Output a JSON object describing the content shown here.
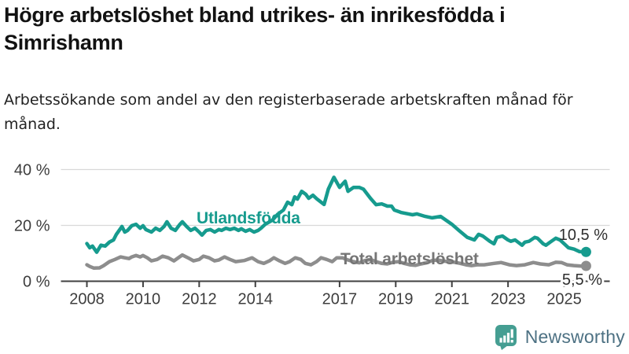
{
  "header": {
    "title": "Högre arbetslöshet bland utrikes- än inrikesfödda i Simrishamn",
    "subtitle": "Arbetssökande som andel av den registerbaserade arbetskraften månad för månad."
  },
  "colors": {
    "teal": "#169B8E",
    "gray_line": "#8D8D8D",
    "gray_label": "#757575",
    "axis": "#404040",
    "grid": "#D8D8D8",
    "annotation": "#2E2E2E",
    "brand_text": "#4D7183",
    "brand_icon": "#459E92"
  },
  "footer": {
    "brand": "Newsworthy",
    "logo_icon": "bar-chart-speech-bubble-icon"
  },
  "chart_data": {
    "type": "line",
    "title": "Högre arbetslöshet bland utrikes- än inrikesfödda i Simrishamn",
    "subtitle": "Arbetssökande som andel av den registerbaserade arbetskraften månad för månad.",
    "xlabel": "",
    "ylabel": "",
    "unit": "%",
    "grid": true,
    "legend_position": "inline-labels",
    "ylim": [
      0,
      40
    ],
    "xlim": [
      2008,
      2025.9
    ],
    "yticks": [
      {
        "value": 0,
        "label": "0 %"
      },
      {
        "value": 20,
        "label": "20 %"
      },
      {
        "value": 40,
        "label": "40 %"
      }
    ],
    "xticks": [
      {
        "value": 2008,
        "label": "2008"
      },
      {
        "value": 2010,
        "label": "2010"
      },
      {
        "value": 2012,
        "label": "2012"
      },
      {
        "value": 2014,
        "label": "2014"
      },
      {
        "value": 2017,
        "label": "2017"
      },
      {
        "value": 2019,
        "label": "2019"
      },
      {
        "value": 2021,
        "label": "2021"
      },
      {
        "value": 2023,
        "label": "2023"
      },
      {
        "value": 2025,
        "label": "2025"
      }
    ],
    "series": [
      {
        "name": "Utlandsfödda",
        "slug": "utlandsfodda",
        "color": "#169B8E",
        "end_label": "10,5 %",
        "end_value": 10.5,
        "points": [
          [
            2008.0,
            13.5
          ],
          [
            2008.1,
            12.0
          ],
          [
            2008.2,
            12.6
          ],
          [
            2008.35,
            10.4
          ],
          [
            2008.5,
            12.9
          ],
          [
            2008.65,
            12.6
          ],
          [
            2008.8,
            14.0
          ],
          [
            2008.95,
            14.8
          ],
          [
            2009.05,
            16.8
          ],
          [
            2009.25,
            19.6
          ],
          [
            2009.35,
            17.6
          ],
          [
            2009.45,
            18.2
          ],
          [
            2009.6,
            19.9
          ],
          [
            2009.75,
            20.4
          ],
          [
            2009.9,
            19.0
          ],
          [
            2010.0,
            19.9
          ],
          [
            2010.1,
            18.5
          ],
          [
            2010.3,
            17.6
          ],
          [
            2010.45,
            19.0
          ],
          [
            2010.6,
            18.2
          ],
          [
            2010.75,
            19.6
          ],
          [
            2010.85,
            21.3
          ],
          [
            2011.0,
            19.0
          ],
          [
            2011.15,
            18.2
          ],
          [
            2011.3,
            20.2
          ],
          [
            2011.4,
            21.3
          ],
          [
            2011.55,
            19.6
          ],
          [
            2011.7,
            18.2
          ],
          [
            2011.85,
            19.0
          ],
          [
            2012.0,
            17.6
          ],
          [
            2012.1,
            16.5
          ],
          [
            2012.25,
            18.2
          ],
          [
            2012.4,
            18.5
          ],
          [
            2012.55,
            17.6
          ],
          [
            2012.7,
            18.5
          ],
          [
            2012.8,
            18.2
          ],
          [
            2012.95,
            19.0
          ],
          [
            2013.1,
            18.5
          ],
          [
            2013.25,
            19.0
          ],
          [
            2013.4,
            18.2
          ],
          [
            2013.5,
            18.8
          ],
          [
            2013.65,
            17.9
          ],
          [
            2013.8,
            18.5
          ],
          [
            2013.95,
            17.6
          ],
          [
            2014.1,
            18.2
          ],
          [
            2014.2,
            19.0
          ],
          [
            2014.35,
            20.4
          ],
          [
            2014.6,
            21.8
          ],
          [
            2014.8,
            24.0
          ],
          [
            2015.0,
            25.5
          ],
          [
            2015.15,
            28.3
          ],
          [
            2015.3,
            27.4
          ],
          [
            2015.4,
            30.2
          ],
          [
            2015.5,
            29.4
          ],
          [
            2015.65,
            32.2
          ],
          [
            2015.8,
            31.1
          ],
          [
            2015.9,
            29.7
          ],
          [
            2016.05,
            30.8
          ],
          [
            2016.2,
            29.4
          ],
          [
            2016.45,
            27.5
          ],
          [
            2016.6,
            33.0
          ],
          [
            2016.8,
            37.2
          ],
          [
            2017.0,
            33.6
          ],
          [
            2017.2,
            35.8
          ],
          [
            2017.3,
            32.2
          ],
          [
            2017.5,
            33.6
          ],
          [
            2017.7,
            33.6
          ],
          [
            2017.85,
            33.0
          ],
          [
            2018.1,
            29.7
          ],
          [
            2018.3,
            27.4
          ],
          [
            2018.5,
            27.7
          ],
          [
            2018.7,
            26.9
          ],
          [
            2018.85,
            26.9
          ],
          [
            2018.95,
            25.5
          ],
          [
            2019.2,
            24.6
          ],
          [
            2019.45,
            24.1
          ],
          [
            2019.6,
            23.8
          ],
          [
            2019.75,
            24.1
          ],
          [
            2020.05,
            23.2
          ],
          [
            2020.3,
            22.7
          ],
          [
            2020.6,
            23.2
          ],
          [
            2021.0,
            20.4
          ],
          [
            2021.25,
            18.2
          ],
          [
            2021.55,
            15.7
          ],
          [
            2021.8,
            14.8
          ],
          [
            2021.95,
            16.8
          ],
          [
            2022.1,
            16.2
          ],
          [
            2022.35,
            14.3
          ],
          [
            2022.5,
            13.4
          ],
          [
            2022.6,
            15.7
          ],
          [
            2022.8,
            16.2
          ],
          [
            2023.0,
            14.8
          ],
          [
            2023.1,
            14.3
          ],
          [
            2023.25,
            14.8
          ],
          [
            2023.5,
            12.9
          ],
          [
            2023.6,
            14.0
          ],
          [
            2023.75,
            14.3
          ],
          [
            2023.95,
            15.7
          ],
          [
            2024.05,
            15.4
          ],
          [
            2024.25,
            13.4
          ],
          [
            2024.35,
            12.9
          ],
          [
            2024.5,
            14.0
          ],
          [
            2024.7,
            15.4
          ],
          [
            2024.85,
            14.8
          ],
          [
            2025.0,
            13.4
          ],
          [
            2025.15,
            12.0
          ],
          [
            2025.35,
            11.5
          ],
          [
            2025.55,
            10.6
          ],
          [
            2025.78,
            10.5
          ]
        ]
      },
      {
        "name": "Total arbetslöshet",
        "slug": "total-arbetsloshet",
        "color": "#8D8D8D",
        "end_label": "5,5 %",
        "end_value": 5.5,
        "points": [
          [
            2008.0,
            5.9
          ],
          [
            2008.1,
            5.3
          ],
          [
            2008.25,
            4.7
          ],
          [
            2008.45,
            4.8
          ],
          [
            2008.6,
            5.6
          ],
          [
            2008.8,
            7.0
          ],
          [
            2009.0,
            7.8
          ],
          [
            2009.2,
            8.7
          ],
          [
            2009.35,
            8.4
          ],
          [
            2009.5,
            8.1
          ],
          [
            2009.6,
            8.7
          ],
          [
            2009.75,
            9.2
          ],
          [
            2009.9,
            8.7
          ],
          [
            2010.0,
            9.2
          ],
          [
            2010.15,
            8.4
          ],
          [
            2010.3,
            7.3
          ],
          [
            2010.5,
            7.8
          ],
          [
            2010.7,
            9.0
          ],
          [
            2010.9,
            8.4
          ],
          [
            2011.1,
            7.3
          ],
          [
            2011.3,
            8.7
          ],
          [
            2011.4,
            9.4
          ],
          [
            2011.6,
            8.4
          ],
          [
            2011.8,
            7.3
          ],
          [
            2012.0,
            7.8
          ],
          [
            2012.15,
            9.0
          ],
          [
            2012.35,
            8.4
          ],
          [
            2012.55,
            7.3
          ],
          [
            2012.7,
            7.6
          ],
          [
            2012.9,
            8.7
          ],
          [
            2013.1,
            7.8
          ],
          [
            2013.3,
            7.0
          ],
          [
            2013.6,
            7.4
          ],
          [
            2013.88,
            8.4
          ],
          [
            2014.1,
            7.0
          ],
          [
            2014.3,
            6.4
          ],
          [
            2014.5,
            7.3
          ],
          [
            2014.66,
            8.4
          ],
          [
            2014.86,
            7.3
          ],
          [
            2015.06,
            6.4
          ],
          [
            2015.22,
            7.0
          ],
          [
            2015.42,
            8.4
          ],
          [
            2015.62,
            7.8
          ],
          [
            2015.78,
            6.4
          ],
          [
            2015.98,
            5.9
          ],
          [
            2016.18,
            7.0
          ],
          [
            2016.34,
            8.4
          ],
          [
            2016.54,
            7.8
          ],
          [
            2016.74,
            7.0
          ],
          [
            2016.9,
            8.4
          ],
          [
            2017.1,
            8.4
          ],
          [
            2017.3,
            7.6
          ],
          [
            2017.5,
            7.0
          ],
          [
            2017.7,
            6.6
          ],
          [
            2017.9,
            7.4
          ],
          [
            2018.1,
            7.8
          ],
          [
            2018.3,
            7.0
          ],
          [
            2018.5,
            6.4
          ],
          [
            2018.7,
            6.2
          ],
          [
            2018.9,
            6.8
          ],
          [
            2019.1,
            7.0
          ],
          [
            2019.3,
            6.4
          ],
          [
            2019.5,
            5.9
          ],
          [
            2019.7,
            5.7
          ],
          [
            2019.9,
            6.2
          ],
          [
            2020.1,
            6.6
          ],
          [
            2020.3,
            7.4
          ],
          [
            2020.5,
            7.6
          ],
          [
            2020.7,
            7.2
          ],
          [
            2020.9,
            7.0
          ],
          [
            2021.1,
            6.8
          ],
          [
            2021.3,
            6.4
          ],
          [
            2021.5,
            5.9
          ],
          [
            2021.7,
            5.6
          ],
          [
            2021.9,
            5.9
          ],
          [
            2022.15,
            5.9
          ],
          [
            2022.5,
            6.4
          ],
          [
            2022.75,
            6.7
          ],
          [
            2023.05,
            5.9
          ],
          [
            2023.3,
            5.6
          ],
          [
            2023.6,
            5.9
          ],
          [
            2023.9,
            6.7
          ],
          [
            2024.15,
            6.2
          ],
          [
            2024.45,
            5.9
          ],
          [
            2024.7,
            6.8
          ],
          [
            2024.9,
            6.7
          ],
          [
            2025.1,
            5.9
          ],
          [
            2025.35,
            5.6
          ],
          [
            2025.6,
            5.4
          ],
          [
            2025.78,
            5.5
          ]
        ]
      }
    ]
  }
}
